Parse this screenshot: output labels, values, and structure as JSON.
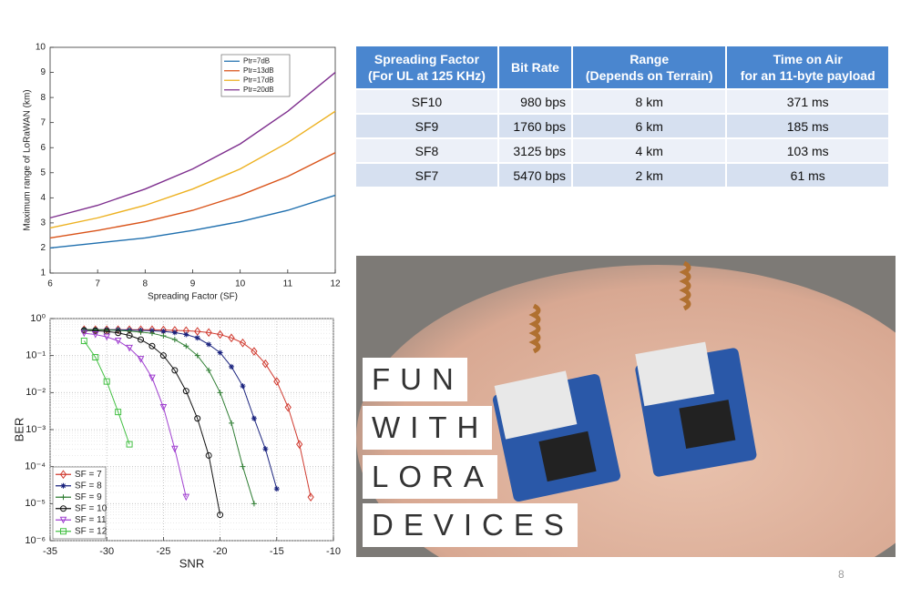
{
  "chart_data": [
    {
      "type": "line",
      "xlabel": "Spreading Factor (SF)",
      "ylabel": "Maximum range of LoRaWAN (km)",
      "x": [
        6,
        7,
        8,
        9,
        10,
        11,
        12
      ],
      "xlim": [
        6,
        12
      ],
      "xticks": [
        6,
        7,
        8,
        9,
        10,
        11,
        12
      ],
      "ylim": [
        1,
        10
      ],
      "yticks": [
        1,
        2,
        3,
        4,
        5,
        6,
        7,
        8,
        9,
        10
      ],
      "grid": false,
      "log_y": false,
      "legend": "upper right",
      "series": [
        {
          "name": "Ptr=7dB",
          "color": "#1f6fae",
          "values": [
            2.0,
            2.2,
            2.4,
            2.7,
            3.05,
            3.5,
            4.1
          ]
        },
        {
          "name": "Ptr=13dB",
          "color": "#d95319",
          "values": [
            2.4,
            2.7,
            3.05,
            3.5,
            4.1,
            4.85,
            5.8
          ]
        },
        {
          "name": "Ptr=17dB",
          "color": "#edb120",
          "values": [
            2.8,
            3.2,
            3.7,
            4.35,
            5.15,
            6.2,
            7.45
          ]
        },
        {
          "name": "Ptr=20dB",
          "color": "#7e2f8e",
          "values": [
            3.2,
            3.7,
            4.35,
            5.15,
            6.15,
            7.45,
            9.0
          ]
        }
      ]
    },
    {
      "type": "line",
      "xlabel": "SNR",
      "ylabel": "BER",
      "xlim": [
        -35,
        -10
      ],
      "xticks": [
        -35,
        -30,
        -25,
        -20,
        -15,
        -10
      ],
      "ylim": [
        1e-06,
        1
      ],
      "yticks": [
        {
          "value": 1e-06,
          "label": "10⁻⁶"
        },
        {
          "value": 1e-05,
          "label": "10⁻⁵"
        },
        {
          "value": 0.0001,
          "label": "10⁻⁴"
        },
        {
          "value": 0.001,
          "label": "10⁻³"
        },
        {
          "value": 0.01,
          "label": "10⁻²"
        },
        {
          "value": 0.1,
          "label": "10⁻¹"
        },
        {
          "value": 1,
          "label": "10⁰"
        }
      ],
      "grid": true,
      "log_y": true,
      "legend": "lower left",
      "series": [
        {
          "name": "SF = 7",
          "color": "#d03a2f",
          "marker": "D",
          "x": [
            -32,
            -31,
            -30,
            -29,
            -28,
            -27,
            -26,
            -25,
            -24,
            -23,
            -22,
            -21,
            -20,
            -19,
            -18,
            -17,
            -16,
            -15,
            -14,
            -13,
            -12
          ],
          "values": [
            0.5,
            0.5,
            0.5,
            0.5,
            0.5,
            0.5,
            0.5,
            0.49,
            0.48,
            0.47,
            0.45,
            0.42,
            0.37,
            0.3,
            0.22,
            0.13,
            0.06,
            0.02,
            0.004,
            0.0004,
            1.5e-05
          ]
        },
        {
          "name": "SF = 8",
          "color": "#1a237e",
          "marker": "*",
          "x": [
            -32,
            -31,
            -30,
            -29,
            -28,
            -27,
            -26,
            -25,
            -24,
            -23,
            -22,
            -21,
            -20,
            -19,
            -18,
            -17,
            -16,
            -15
          ],
          "values": [
            0.5,
            0.5,
            0.5,
            0.5,
            0.49,
            0.48,
            0.47,
            0.45,
            0.42,
            0.37,
            0.3,
            0.2,
            0.12,
            0.05,
            0.015,
            0.002,
            0.0003,
            2.5e-05
          ]
        },
        {
          "name": "SF = 9",
          "color": "#2e7d32",
          "marker": "+",
          "x": [
            -32,
            -31,
            -30,
            -29,
            -28,
            -27,
            -26,
            -25,
            -24,
            -23,
            -22,
            -21,
            -20,
            -19,
            -18,
            -17
          ],
          "values": [
            0.5,
            0.5,
            0.49,
            0.48,
            0.46,
            0.43,
            0.4,
            0.34,
            0.27,
            0.18,
            0.1,
            0.04,
            0.01,
            0.0015,
            0.0001,
            1e-05
          ]
        },
        {
          "name": "SF = 10",
          "color": "#111111",
          "marker": "o",
          "x": [
            -32,
            -31,
            -30,
            -29,
            -28,
            -27,
            -26,
            -25,
            -24,
            -23,
            -22,
            -21,
            -20
          ],
          "values": [
            0.48,
            0.47,
            0.45,
            0.41,
            0.35,
            0.27,
            0.18,
            0.1,
            0.04,
            0.011,
            0.002,
            0.0002,
            5e-06
          ]
        },
        {
          "name": "SF = 11",
          "color": "#a040d0",
          "marker": "v",
          "x": [
            -32,
            -31,
            -30,
            -29,
            -28,
            -27,
            -26,
            -25,
            -24,
            -23
          ],
          "values": [
            0.4,
            0.37,
            0.32,
            0.25,
            0.16,
            0.08,
            0.025,
            0.004,
            0.0003,
            1.5e-05
          ]
        },
        {
          "name": "SF = 12",
          "color": "#44c044",
          "marker": "s",
          "x": [
            -32,
            -31,
            -30,
            -29,
            -28
          ],
          "values": [
            0.25,
            0.09,
            0.02,
            0.003,
            0.0004
          ]
        }
      ]
    }
  ],
  "table": {
    "header": [
      "Spreading Factor\n(For UL at 125 KHz)",
      "Bit Rate",
      "Range\n(Depends on Terrain)",
      "Time on Air\nfor  an 11-byte payload"
    ],
    "rows": [
      [
        "SF10",
        "980 bps",
        "8 km",
        "371 ms"
      ],
      [
        "SF9",
        "1760 bps",
        "6 km",
        "185 ms"
      ],
      [
        "SF8",
        "3125 bps",
        "4 km",
        "103 ms"
      ],
      [
        "SF7",
        "5470 bps",
        "2 km",
        "61 ms"
      ]
    ]
  },
  "photo": {
    "lines": [
      "FUN",
      "WITH",
      "LORA",
      "DEVICES"
    ]
  },
  "page_number": "8"
}
